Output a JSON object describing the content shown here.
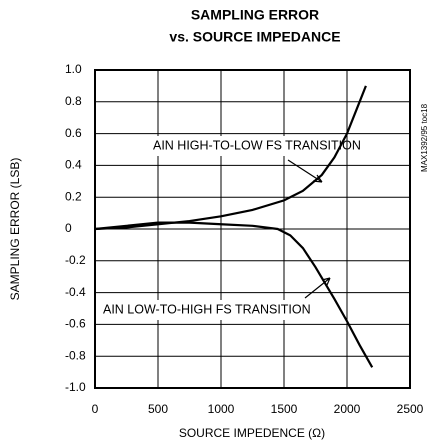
{
  "chart_data": {
    "type": "line",
    "title": [
      "SAMPLING ERROR",
      "vs. SOURCE IMPEDANCE"
    ],
    "x_label": "SOURCE IMPEDENCE (Ω)",
    "y_label": "SAMPLING ERROR (LSB)",
    "side_note": "MAX1392/95 toc18",
    "xlim": [
      0,
      2500
    ],
    "xticks": [
      0,
      500,
      1000,
      1500,
      2000,
      2500
    ],
    "ylim": [
      -1,
      1
    ],
    "yticks": [
      {
        "value": 1,
        "label": "1.0"
      },
      0.8,
      0.6,
      0.4,
      0.2,
      0,
      -0.2,
      -0.4,
      -0.6,
      -0.8,
      {
        "value": -1,
        "label": "-1.0"
      }
    ],
    "grid": true,
    "series": [
      {
        "name": "AIN HIGH-TO-LOW FS TRANSITION",
        "color": "#000000",
        "x": [
          0,
          250,
          500,
          750,
          1000,
          1250,
          1500,
          1650,
          1800,
          1900,
          2000,
          2100,
          2150
        ],
        "values": [
          0,
          0.01,
          0.03,
          0.05,
          0.08,
          0.12,
          0.18,
          0.24,
          0.34,
          0.45,
          0.6,
          0.8,
          0.9
        ]
      },
      {
        "name": "AIN LOW-TO-HIGH FS TRANSITION",
        "color": "#000000",
        "x": [
          0,
          250,
          500,
          750,
          1000,
          1250,
          1450,
          1550,
          1650,
          1750,
          1900,
          2000,
          2100,
          2200
        ],
        "values": [
          0,
          0.02,
          0.04,
          0.04,
          0.03,
          0.02,
          0.0,
          -0.04,
          -0.12,
          -0.24,
          -0.44,
          -0.58,
          -0.73,
          -0.87
        ]
      }
    ]
  }
}
